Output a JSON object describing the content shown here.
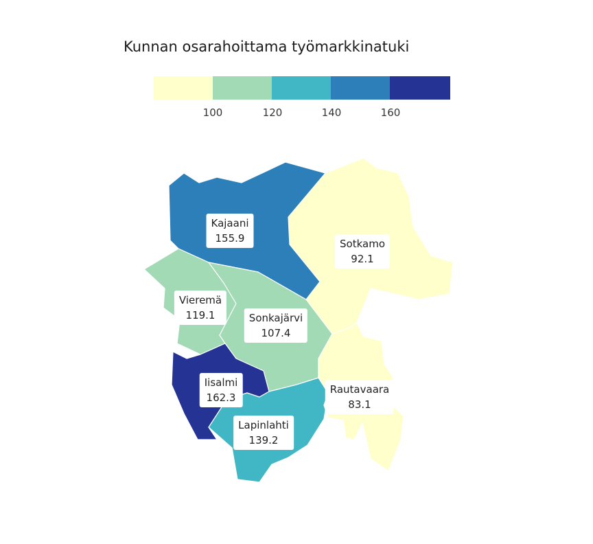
{
  "title": "Kunnan osarahoittama työmarkkinatuki",
  "legend": {
    "ticks": [
      "100",
      "120",
      "140",
      "160"
    ],
    "colors": [
      "#ffffcc",
      "#a1dab4",
      "#41b6c4",
      "#2c7fb8",
      "#253494"
    ]
  },
  "regions": [
    {
      "name": "Kajaani",
      "value": "155.9",
      "color": "#2c7fb8"
    },
    {
      "name": "Sotkamo",
      "value": "92.1",
      "color": "#ffffcc"
    },
    {
      "name": "Vieremä",
      "value": "119.1",
      "color": "#a1dab4"
    },
    {
      "name": "Sonkajärvi",
      "value": "107.4",
      "color": "#a1dab4"
    },
    {
      "name": "Iisalmi",
      "value": "162.3",
      "color": "#253494"
    },
    {
      "name": "Lapinlahti",
      "value": "139.2",
      "color": "#41b6c4"
    },
    {
      "name": "Rautavaara",
      "value": "83.1",
      "color": "#ffffcc"
    }
  ]
}
